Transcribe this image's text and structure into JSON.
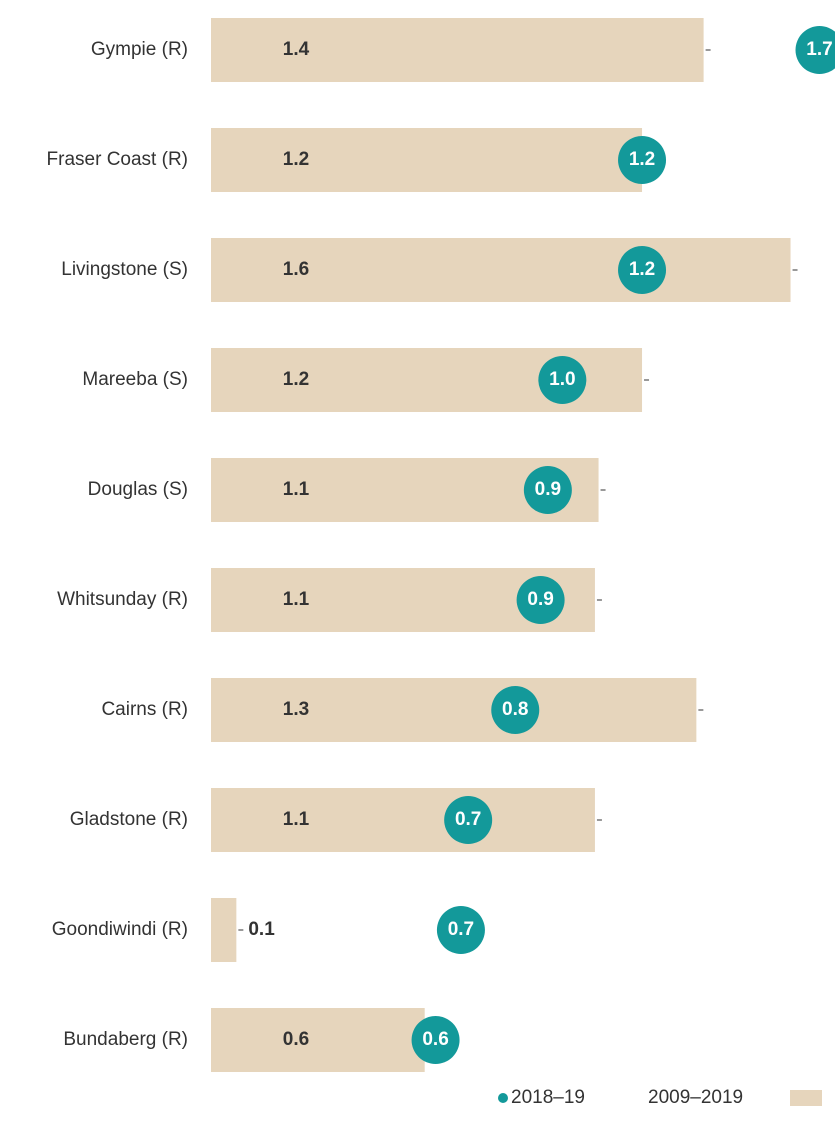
{
  "chart_data": {
    "type": "bar_dot",
    "categories": [
      "Gympie (R)",
      "Fraser Coast (R)",
      "Livingstone (S)",
      "Mareeba (S)",
      "Douglas (S)",
      "Whitsunday (R)",
      "Cairns (R)",
      "Gladstone (R)",
      "Goondiwindi (R)",
      "Bundaberg (R)"
    ],
    "xlim": [
      0,
      1.72
    ],
    "series": [
      {
        "name": "2009–2019",
        "color": "#e6d5bc",
        "values": [
          1.36,
          1.19,
          1.6,
          1.19,
          1.07,
          1.06,
          1.34,
          1.06,
          0.07,
          0.59
        ],
        "value_labels": [
          "1.4",
          "1.2",
          "1.6",
          "1.2",
          "1.1",
          "1.1",
          "1.3",
          "1.1",
          "0.1",
          "0.6"
        ]
      },
      {
        "name": "2018–19",
        "color": "#13999a",
        "values": [
          1.68,
          1.19,
          1.19,
          0.97,
          0.93,
          0.91,
          0.84,
          0.71,
          0.69,
          0.62
        ],
        "value_labels": [
          "1.7",
          "1.2",
          "1.2",
          "1.0",
          "0.9",
          "0.9",
          "0.8",
          "0.7",
          "0.7",
          "0.6"
        ]
      }
    ]
  }
}
